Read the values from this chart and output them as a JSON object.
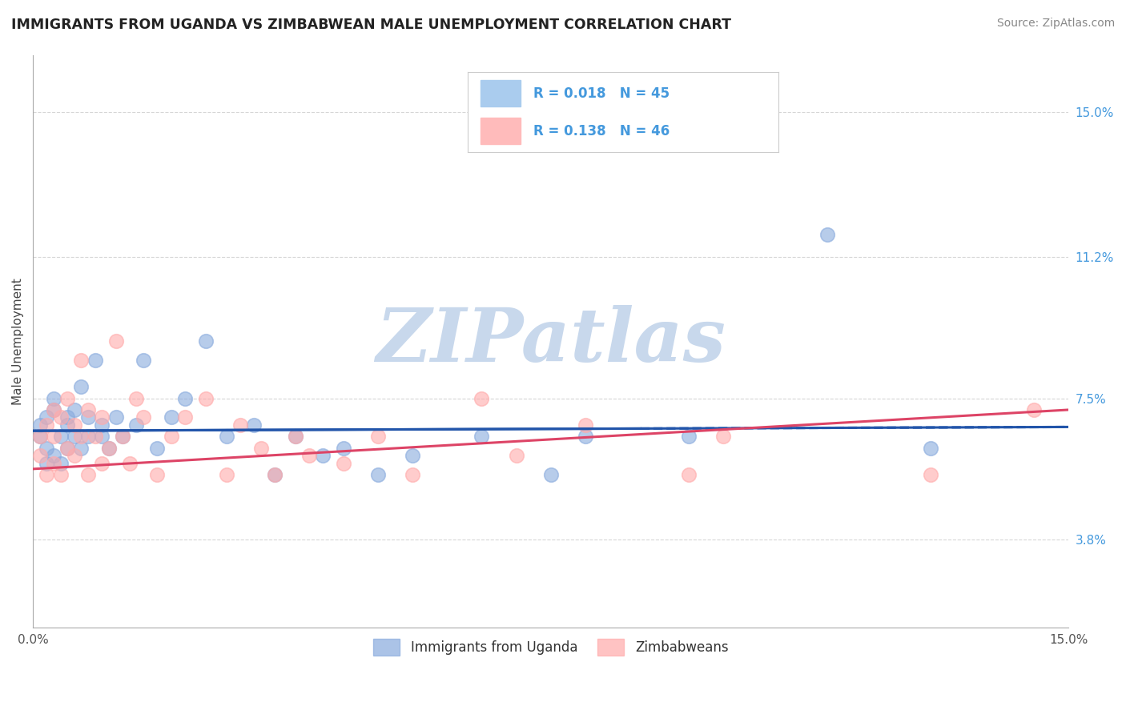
{
  "title": "IMMIGRANTS FROM UGANDA VS ZIMBABWEAN MALE UNEMPLOYMENT CORRELATION CHART",
  "source": "Source: ZipAtlas.com",
  "ylabel": "Male Unemployment",
  "xlim": [
    0,
    0.15
  ],
  "ylim": [
    0.015,
    0.165
  ],
  "yticks": [
    0.038,
    0.075,
    0.112,
    0.15
  ],
  "ytick_labels": [
    "3.8%",
    "7.5%",
    "11.2%",
    "15.0%"
  ],
  "legend_label1": "Immigrants from Uganda",
  "legend_label2": "Zimbabweans",
  "blue_color": "#88AADD",
  "pink_color": "#FFAAAA",
  "trend_blue_color": "#2255AA",
  "trend_pink_color": "#DD4466",
  "watermark_text": "ZIPatlas",
  "watermark_color": "#C8D8EC",
  "blue_R": 0.018,
  "blue_N": 45,
  "pink_R": 0.138,
  "pink_N": 46,
  "grid_color": "#CCCCCC",
  "spine_color": "#AAAAAA",
  "title_color": "#222222",
  "source_color": "#888888",
  "ylabel_color": "#444444",
  "ytick_color": "#4499DD",
  "xtick_color": "#555555",
  "legend_text_color": "#4499DD",
  "legend_patch_blue": "#AACCEE",
  "legend_patch_pink": "#FFBBBB",
  "blue_x": [
    0.001,
    0.001,
    0.002,
    0.002,
    0.002,
    0.003,
    0.003,
    0.003,
    0.004,
    0.004,
    0.005,
    0.005,
    0.005,
    0.006,
    0.006,
    0.007,
    0.007,
    0.008,
    0.008,
    0.009,
    0.01,
    0.01,
    0.011,
    0.012,
    0.013,
    0.015,
    0.016,
    0.018,
    0.02,
    0.022,
    0.025,
    0.028,
    0.032,
    0.035,
    0.038,
    0.042,
    0.045,
    0.05,
    0.055,
    0.065,
    0.075,
    0.08,
    0.095,
    0.115,
    0.13
  ],
  "blue_y": [
    0.065,
    0.068,
    0.062,
    0.07,
    0.058,
    0.072,
    0.06,
    0.075,
    0.065,
    0.058,
    0.07,
    0.062,
    0.068,
    0.065,
    0.072,
    0.078,
    0.062,
    0.065,
    0.07,
    0.085,
    0.065,
    0.068,
    0.062,
    0.07,
    0.065,
    0.068,
    0.085,
    0.062,
    0.07,
    0.075,
    0.09,
    0.065,
    0.068,
    0.055,
    0.065,
    0.06,
    0.062,
    0.055,
    0.06,
    0.065,
    0.055,
    0.065,
    0.065,
    0.118,
    0.062
  ],
  "pink_x": [
    0.001,
    0.001,
    0.002,
    0.002,
    0.003,
    0.003,
    0.003,
    0.004,
    0.004,
    0.005,
    0.005,
    0.006,
    0.006,
    0.007,
    0.007,
    0.008,
    0.008,
    0.009,
    0.01,
    0.01,
    0.011,
    0.012,
    0.013,
    0.014,
    0.015,
    0.016,
    0.018,
    0.02,
    0.022,
    0.025,
    0.028,
    0.03,
    0.033,
    0.035,
    0.038,
    0.04,
    0.045,
    0.05,
    0.055,
    0.065,
    0.07,
    0.08,
    0.095,
    0.1,
    0.13,
    0.145
  ],
  "pink_y": [
    0.065,
    0.06,
    0.068,
    0.055,
    0.072,
    0.058,
    0.065,
    0.07,
    0.055,
    0.075,
    0.062,
    0.068,
    0.06,
    0.085,
    0.065,
    0.072,
    0.055,
    0.065,
    0.07,
    0.058,
    0.062,
    0.09,
    0.065,
    0.058,
    0.075,
    0.07,
    0.055,
    0.065,
    0.07,
    0.075,
    0.055,
    0.068,
    0.062,
    0.055,
    0.065,
    0.06,
    0.058,
    0.065,
    0.055,
    0.075,
    0.06,
    0.068,
    0.055,
    0.065,
    0.055,
    0.072
  ]
}
